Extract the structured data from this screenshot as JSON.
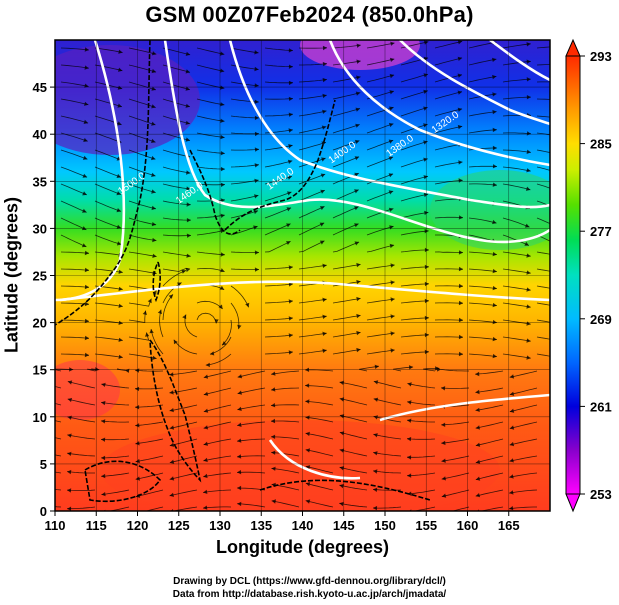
{
  "title": "GSM 00Z07Feb2024 (850.0hPa)",
  "xlabel": "Longitude (degrees)",
  "ylabel": "Latitude  (degrees)",
  "credits": [
    "Drawing by DCL (https://www.gfd-dennou.org/library/dcl/)",
    "Data from http://database.rish.kyoto-u.ac.jp/arch/jmadata/"
  ],
  "chart_data": {
    "type": "heatmap",
    "x_range": [
      110,
      170
    ],
    "y_range": [
      0,
      50
    ],
    "x_ticks": [
      110,
      115,
      120,
      125,
      130,
      135,
      140,
      145,
      150,
      155,
      160,
      165
    ],
    "y_ticks": [
      0,
      5,
      10,
      15,
      20,
      25,
      30,
      35,
      40,
      45
    ],
    "grid": true,
    "colorbar": {
      "min": 253,
      "max": 293,
      "ticks": [
        253,
        261,
        269,
        277,
        285,
        293
      ],
      "colors": [
        "#ff00ff",
        "#4b00c8",
        "#0000ff",
        "#00aaff",
        "#00e5e5",
        "#00e066",
        "#22dd00",
        "#aaee00",
        "#ffee00",
        "#ffaa00",
        "#ff5500",
        "#ff2200"
      ]
    },
    "contours": [
      {
        "label": "1320.0",
        "lon": 157.5,
        "lat": 41.0
      },
      {
        "label": "1380.0",
        "lon": 152.0,
        "lat": 38.5
      },
      {
        "label": "1400.0",
        "lon": 145.0,
        "lat": 37.8
      },
      {
        "label": "1440.0",
        "lon": 137.5,
        "lat": 35.0
      },
      {
        "label": "1460.0",
        "lon": 126.5,
        "lat": 33.5
      },
      {
        "label": "1500.0",
        "lon": 119.5,
        "lat": 34.5
      }
    ],
    "features": [
      "temperature field",
      "geopotential height contours",
      "wind streamlines",
      "coastlines"
    ]
  }
}
